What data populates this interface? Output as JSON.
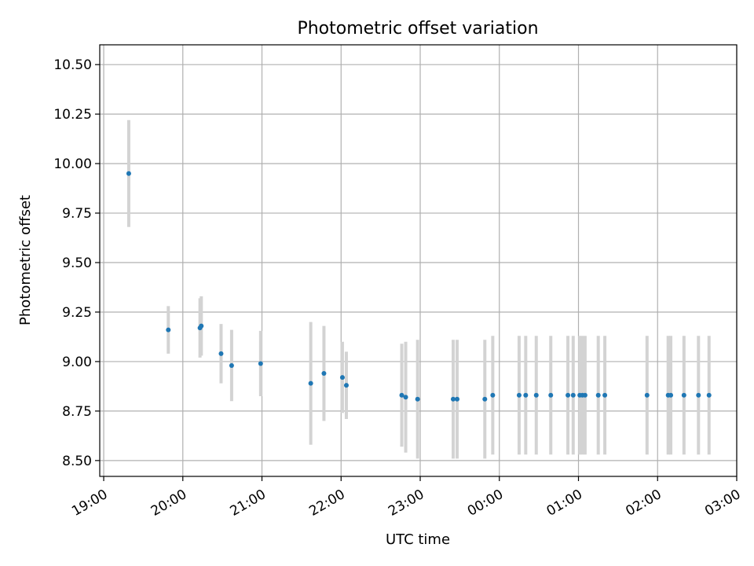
{
  "chart_data": {
    "type": "scatter",
    "title": "Photometric offset variation",
    "xlabel": "UTC time",
    "ylabel": "Photometric offset",
    "grid": true,
    "legend": "none",
    "xlim": [
      "18:57",
      "03:00"
    ],
    "ylim": [
      8.42,
      10.6
    ],
    "x_ticks": [
      "19:00",
      "20:00",
      "21:00",
      "22:00",
      "23:00",
      "00:00",
      "01:00",
      "02:00",
      "03:00"
    ],
    "y_ticks": [
      "8.50",
      "8.75",
      "9.00",
      "9.25",
      "9.50",
      "9.75",
      "10.00",
      "10.25",
      "10.50"
    ],
    "marker_color": "#1f77b4",
    "errorbar_color": "#d3d3d3",
    "series": [
      {
        "points": [
          {
            "x": "19:19",
            "y": 9.95,
            "yerr": 0.27
          },
          {
            "x": "19:49",
            "y": 9.16,
            "yerr": 0.12
          },
          {
            "x": "20:13",
            "y": 9.17,
            "yerr": 0.15
          },
          {
            "x": "20:14",
            "y": 9.18,
            "yerr": 0.15
          },
          {
            "x": "20:29",
            "y": 9.04,
            "yerr": 0.15
          },
          {
            "x": "20:37",
            "y": 8.98,
            "yerr": 0.18
          },
          {
            "x": "20:59",
            "y": 8.99,
            "yerr": 0.165
          },
          {
            "x": "21:37",
            "y": 8.89,
            "yerr": 0.31
          },
          {
            "x": "21:47",
            "y": 8.94,
            "yerr": 0.24
          },
          {
            "x": "22:01",
            "y": 8.92,
            "yerr": 0.18
          },
          {
            "x": "22:04",
            "y": 8.88,
            "yerr": 0.17
          },
          {
            "x": "22:46",
            "y": 8.83,
            "yerr": 0.26
          },
          {
            "x": "22:49",
            "y": 8.82,
            "yerr": 0.28
          },
          {
            "x": "22:58",
            "y": 8.81,
            "yerr": 0.3
          },
          {
            "x": "23:25",
            "y": 8.81,
            "yerr": 0.3
          },
          {
            "x": "23:28",
            "y": 8.81,
            "yerr": 0.3
          },
          {
            "x": "23:49",
            "y": 8.81,
            "yerr": 0.3
          },
          {
            "x": "23:55",
            "y": 8.83,
            "yerr": 0.3
          },
          {
            "x": "00:15",
            "y": 8.83,
            "yerr": 0.3
          },
          {
            "x": "00:20",
            "y": 8.83,
            "yerr": 0.3
          },
          {
            "x": "00:28",
            "y": 8.83,
            "yerr": 0.3
          },
          {
            "x": "00:39",
            "y": 8.83,
            "yerr": 0.3
          },
          {
            "x": "00:52",
            "y": 8.83,
            "yerr": 0.3
          },
          {
            "x": "00:56",
            "y": 8.83,
            "yerr": 0.3
          },
          {
            "x": "01:01",
            "y": 8.83,
            "yerr": 0.3
          },
          {
            "x": "01:03",
            "y": 8.83,
            "yerr": 0.3
          },
          {
            "x": "01:05",
            "y": 8.83,
            "yerr": 0.3
          },
          {
            "x": "01:15",
            "y": 8.83,
            "yerr": 0.3
          },
          {
            "x": "01:20",
            "y": 8.83,
            "yerr": 0.3
          },
          {
            "x": "01:52",
            "y": 8.83,
            "yerr": 0.3
          },
          {
            "x": "02:08",
            "y": 8.83,
            "yerr": 0.3
          },
          {
            "x": "02:10",
            "y": 8.83,
            "yerr": 0.3
          },
          {
            "x": "02:20",
            "y": 8.83,
            "yerr": 0.3
          },
          {
            "x": "02:31",
            "y": 8.83,
            "yerr": 0.3
          },
          {
            "x": "02:39",
            "y": 8.83,
            "yerr": 0.3
          }
        ]
      }
    ]
  }
}
